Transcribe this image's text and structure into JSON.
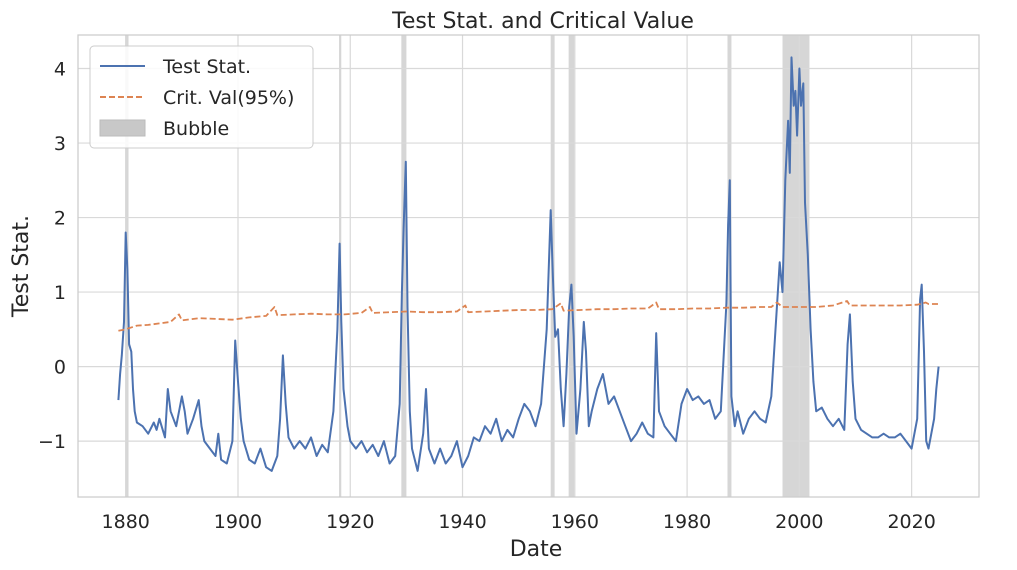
{
  "chart_data": {
    "type": "line",
    "title": "Test Stat. and Critical Value",
    "xlabel": "Date",
    "ylabel": "Test Stat.",
    "xlim": [
      1871.5,
      2032
    ],
    "ylim": [
      -1.75,
      4.45
    ],
    "x_ticks": [
      1880,
      1900,
      1920,
      1940,
      1960,
      1980,
      2000,
      2020
    ],
    "y_ticks": [
      -1,
      0,
      1,
      2,
      3,
      4
    ],
    "y_tick_labels": [
      "−1",
      "0",
      "1",
      "2",
      "3",
      "4"
    ],
    "grid": true,
    "legend_position": "top-left",
    "colors": {
      "test_stat": "#4c72b0",
      "crit_val": "#dd8452",
      "bubble": "#c8c8c8"
    },
    "legend": [
      {
        "key": "test_stat",
        "label": "Test Stat.",
        "style": "solid-line"
      },
      {
        "key": "crit_val",
        "label": "Crit. Val(95%)",
        "style": "dashed-line"
      },
      {
        "key": "bubble",
        "label": "Bubble",
        "style": "patch"
      }
    ],
    "bubble_periods": [
      [
        1879.9,
        1880.5
      ],
      [
        1918.0,
        1918.4
      ],
      [
        1929.1,
        1930.0
      ],
      [
        1955.7,
        1956.4
      ],
      [
        1958.9,
        1959.9
      ],
      [
        1987.2,
        1987.9
      ],
      [
        1997.0,
        2001.8
      ]
    ],
    "series": [
      {
        "name": "Test Stat.",
        "key": "test_stat",
        "points": [
          [
            1878.7,
            -0.45
          ],
          [
            1879.0,
            -0.1
          ],
          [
            1879.3,
            0.15
          ],
          [
            1879.7,
            0.6
          ],
          [
            1880.0,
            1.8
          ],
          [
            1880.3,
            1.3
          ],
          [
            1880.6,
            0.3
          ],
          [
            1881.0,
            0.2
          ],
          [
            1881.3,
            -0.3
          ],
          [
            1881.6,
            -0.6
          ],
          [
            1882.0,
            -0.75
          ],
          [
            1883,
            -0.8
          ],
          [
            1884,
            -0.9
          ],
          [
            1885,
            -0.75
          ],
          [
            1885.5,
            -0.85
          ],
          [
            1886,
            -0.7
          ],
          [
            1887,
            -0.95
          ],
          [
            1887.5,
            -0.3
          ],
          [
            1888,
            -0.6
          ],
          [
            1889,
            -0.8
          ],
          [
            1890,
            -0.4
          ],
          [
            1890.5,
            -0.6
          ],
          [
            1891,
            -0.9
          ],
          [
            1892,
            -0.7
          ],
          [
            1893,
            -0.45
          ],
          [
            1893.5,
            -0.8
          ],
          [
            1894,
            -1.0
          ],
          [
            1895,
            -1.1
          ],
          [
            1896,
            -1.2
          ],
          [
            1896.5,
            -0.9
          ],
          [
            1897,
            -1.25
          ],
          [
            1898,
            -1.3
          ],
          [
            1899,
            -1.0
          ],
          [
            1899.5,
            0.35
          ],
          [
            1900,
            -0.2
          ],
          [
            1900.5,
            -0.7
          ],
          [
            1901,
            -1.0
          ],
          [
            1902,
            -1.25
          ],
          [
            1903,
            -1.3
          ],
          [
            1904,
            -1.1
          ],
          [
            1905,
            -1.35
          ],
          [
            1906,
            -1.4
          ],
          [
            1907,
            -1.2
          ],
          [
            1907.5,
            -0.7
          ],
          [
            1908,
            0.15
          ],
          [
            1908.5,
            -0.5
          ],
          [
            1909,
            -0.95
          ],
          [
            1910,
            -1.1
          ],
          [
            1911,
            -1.0
          ],
          [
            1912,
            -1.1
          ],
          [
            1913,
            -0.95
          ],
          [
            1914,
            -1.2
          ],
          [
            1915,
            -1.05
          ],
          [
            1916,
            -1.15
          ],
          [
            1917,
            -0.6
          ],
          [
            1917.7,
            0.5
          ],
          [
            1918.1,
            1.65
          ],
          [
            1918.4,
            0.6
          ],
          [
            1918.8,
            -0.3
          ],
          [
            1919.5,
            -0.8
          ],
          [
            1920,
            -1.0
          ],
          [
            1921,
            -1.1
          ],
          [
            1922,
            -1.0
          ],
          [
            1923,
            -1.15
          ],
          [
            1924,
            -1.05
          ],
          [
            1925,
            -1.2
          ],
          [
            1926,
            -1.0
          ],
          [
            1927,
            -1.3
          ],
          [
            1928,
            -1.2
          ],
          [
            1928.8,
            -0.5
          ],
          [
            1929.2,
            1.0
          ],
          [
            1929.5,
            1.85
          ],
          [
            1929.9,
            2.75
          ],
          [
            1930.2,
            0.8
          ],
          [
            1930.6,
            -0.6
          ],
          [
            1931,
            -1.1
          ],
          [
            1932,
            -1.4
          ],
          [
            1933,
            -0.9
          ],
          [
            1933.5,
            -0.3
          ],
          [
            1934,
            -1.1
          ],
          [
            1935,
            -1.3
          ],
          [
            1936,
            -1.1
          ],
          [
            1937,
            -1.3
          ],
          [
            1938,
            -1.2
          ],
          [
            1939,
            -1.0
          ],
          [
            1940,
            -1.35
          ],
          [
            1941,
            -1.2
          ],
          [
            1942,
            -0.95
          ],
          [
            1943,
            -1.0
          ],
          [
            1944,
            -0.8
          ],
          [
            1945,
            -0.9
          ],
          [
            1946,
            -0.7
          ],
          [
            1947,
            -1.0
          ],
          [
            1948,
            -0.85
          ],
          [
            1949,
            -0.95
          ],
          [
            1950,
            -0.7
          ],
          [
            1951,
            -0.5
          ],
          [
            1952,
            -0.6
          ],
          [
            1953,
            -0.8
          ],
          [
            1954,
            -0.5
          ],
          [
            1955,
            0.5
          ],
          [
            1955.7,
            2.1
          ],
          [
            1956.1,
            1.2
          ],
          [
            1956.5,
            0.4
          ],
          [
            1957,
            0.5
          ],
          [
            1957.5,
            -0.3
          ],
          [
            1958,
            -0.8
          ],
          [
            1958.5,
            -0.1
          ],
          [
            1959.0,
            0.8
          ],
          [
            1959.4,
            1.1
          ],
          [
            1959.8,
            0.4
          ],
          [
            1960.3,
            -0.9
          ],
          [
            1961,
            -0.3
          ],
          [
            1961.6,
            0.6
          ],
          [
            1962,
            0.2
          ],
          [
            1962.5,
            -0.8
          ],
          [
            1963,
            -0.6
          ],
          [
            1964,
            -0.3
          ],
          [
            1965,
            -0.1
          ],
          [
            1966,
            -0.5
          ],
          [
            1967,
            -0.4
          ],
          [
            1968,
            -0.6
          ],
          [
            1969,
            -0.8
          ],
          [
            1970,
            -1.0
          ],
          [
            1971,
            -0.9
          ],
          [
            1972,
            -0.75
          ],
          [
            1973,
            -0.9
          ],
          [
            1974,
            -0.95
          ],
          [
            1974.5,
            0.45
          ],
          [
            1975,
            -0.6
          ],
          [
            1976,
            -0.8
          ],
          [
            1977,
            -0.9
          ],
          [
            1978,
            -1.0
          ],
          [
            1979,
            -0.5
          ],
          [
            1980,
            -0.3
          ],
          [
            1981,
            -0.45
          ],
          [
            1982,
            -0.4
          ],
          [
            1983,
            -0.5
          ],
          [
            1984,
            -0.45
          ],
          [
            1985,
            -0.7
          ],
          [
            1986,
            -0.6
          ],
          [
            1987.0,
            0.85
          ],
          [
            1987.3,
            1.9
          ],
          [
            1987.6,
            2.5
          ],
          [
            1987.9,
            -0.4
          ],
          [
            1988.5,
            -0.8
          ],
          [
            1989,
            -0.6
          ],
          [
            1990,
            -0.9
          ],
          [
            1991,
            -0.7
          ],
          [
            1992,
            -0.6
          ],
          [
            1993,
            -0.7
          ],
          [
            1994,
            -0.75
          ],
          [
            1995,
            -0.4
          ],
          [
            1996,
            0.8
          ],
          [
            1996.5,
            1.4
          ],
          [
            1997,
            1.0
          ],
          [
            1997.5,
            2.5
          ],
          [
            1998,
            3.3
          ],
          [
            1998.3,
            2.6
          ],
          [
            1998.6,
            4.15
          ],
          [
            1999.0,
            3.5
          ],
          [
            1999.3,
            3.7
          ],
          [
            1999.6,
            3.1
          ],
          [
            2000.0,
            4.0
          ],
          [
            2000.3,
            3.5
          ],
          [
            2000.7,
            3.8
          ],
          [
            2001.0,
            2.2
          ],
          [
            2001.5,
            1.5
          ],
          [
            2002.0,
            0.5
          ],
          [
            2002.5,
            -0.2
          ],
          [
            2003,
            -0.6
          ],
          [
            2004,
            -0.55
          ],
          [
            2005,
            -0.7
          ],
          [
            2006,
            -0.8
          ],
          [
            2007,
            -0.7
          ],
          [
            2008,
            -0.85
          ],
          [
            2008.6,
            0.3
          ],
          [
            2009,
            0.7
          ],
          [
            2009.5,
            -0.2
          ],
          [
            2010,
            -0.7
          ],
          [
            2011,
            -0.85
          ],
          [
            2012,
            -0.9
          ],
          [
            2013,
            -0.95
          ],
          [
            2014,
            -0.95
          ],
          [
            2015,
            -0.9
          ],
          [
            2016,
            -0.95
          ],
          [
            2017,
            -0.95
          ],
          [
            2018,
            -0.9
          ],
          [
            2019,
            -1.0
          ],
          [
            2020,
            -1.1
          ],
          [
            2021,
            -0.7
          ],
          [
            2021.5,
            0.9
          ],
          [
            2021.8,
            1.1
          ],
          [
            2022.2,
            0.2
          ],
          [
            2022.6,
            -1.0
          ],
          [
            2023,
            -1.1
          ],
          [
            2023.5,
            -0.9
          ],
          [
            2024,
            -0.7
          ],
          [
            2024.4,
            -0.3
          ],
          [
            2024.8,
            0.0
          ]
        ]
      },
      {
        "name": "Crit. Val(95%)",
        "key": "crit_val",
        "points": [
          [
            1878.7,
            0.48
          ],
          [
            1880,
            0.5
          ],
          [
            1882,
            0.55
          ],
          [
            1884,
            0.56
          ],
          [
            1886,
            0.58
          ],
          [
            1888,
            0.6
          ],
          [
            1889.5,
            0.7
          ],
          [
            1890,
            0.62
          ],
          [
            1893,
            0.65
          ],
          [
            1896,
            0.64
          ],
          [
            1899,
            0.63
          ],
          [
            1902,
            0.66
          ],
          [
            1905,
            0.68
          ],
          [
            1906.5,
            0.8
          ],
          [
            1907,
            0.69
          ],
          [
            1910,
            0.7
          ],
          [
            1913,
            0.71
          ],
          [
            1916,
            0.7
          ],
          [
            1919,
            0.7
          ],
          [
            1922,
            0.72
          ],
          [
            1923.5,
            0.8
          ],
          [
            1924,
            0.72
          ],
          [
            1927,
            0.73
          ],
          [
            1930,
            0.74
          ],
          [
            1933,
            0.73
          ],
          [
            1936,
            0.73
          ],
          [
            1939,
            0.74
          ],
          [
            1940.5,
            0.82
          ],
          [
            1941,
            0.73
          ],
          [
            1944,
            0.74
          ],
          [
            1947,
            0.75
          ],
          [
            1950,
            0.76
          ],
          [
            1953,
            0.76
          ],
          [
            1956,
            0.77
          ],
          [
            1957.5,
            0.85
          ],
          [
            1958,
            0.75
          ],
          [
            1961,
            0.76
          ],
          [
            1964,
            0.77
          ],
          [
            1967,
            0.77
          ],
          [
            1970,
            0.78
          ],
          [
            1973,
            0.78
          ],
          [
            1974.5,
            0.86
          ],
          [
            1975,
            0.77
          ],
          [
            1978,
            0.77
          ],
          [
            1981,
            0.78
          ],
          [
            1984,
            0.78
          ],
          [
            1987,
            0.79
          ],
          [
            1990,
            0.79
          ],
          [
            1993,
            0.8
          ],
          [
            1995,
            0.8
          ],
          [
            1996,
            0.86
          ],
          [
            1997,
            0.8
          ],
          [
            2000,
            0.8
          ],
          [
            2003,
            0.8
          ],
          [
            2006,
            0.82
          ],
          [
            2008.5,
            0.88
          ],
          [
            2009,
            0.82
          ],
          [
            2012,
            0.82
          ],
          [
            2015,
            0.82
          ],
          [
            2018,
            0.82
          ],
          [
            2021,
            0.83
          ],
          [
            2022.5,
            0.86
          ],
          [
            2023,
            0.84
          ],
          [
            2024.8,
            0.84
          ]
        ]
      }
    ]
  }
}
